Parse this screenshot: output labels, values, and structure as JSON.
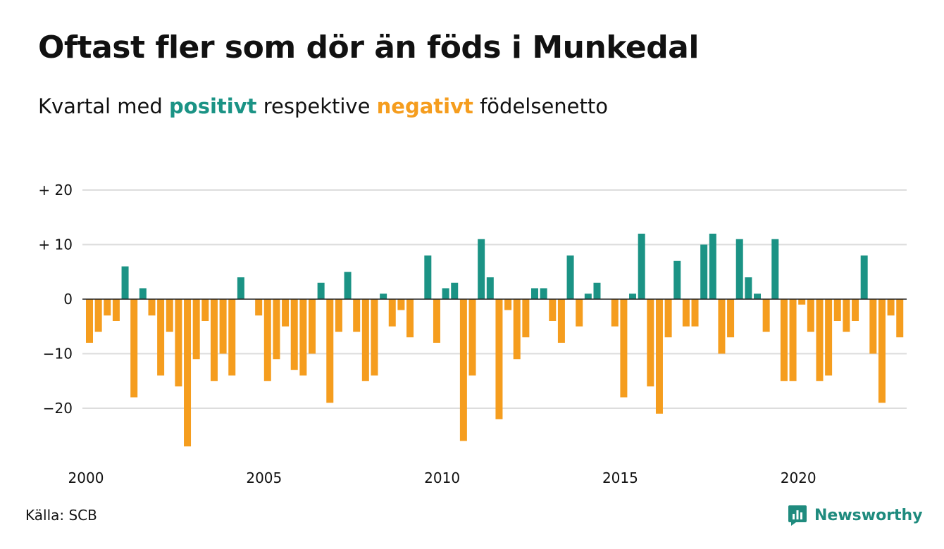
{
  "title": "Oftast fler som dör än föds i Munkedal",
  "subtitle": {
    "part1": "Kvartal med",
    "positive_word": "positivt",
    "part2": "respektive",
    "negative_word": "negativt",
    "part3": "födelsenetto"
  },
  "source": "Källa: SCB",
  "brand": "Newsworthy",
  "colors": {
    "positive": "#1b9385",
    "negative": "#f59d1e",
    "grid": "#dddddd",
    "axis": "#222222",
    "brand": "#1f8b7e"
  },
  "chart_data": {
    "type": "bar",
    "xlabel": "",
    "ylabel": "",
    "ylim": [
      -29,
      22
    ],
    "yticks": [
      {
        "value": 20,
        "label": "+ 20"
      },
      {
        "value": 10,
        "label": "+ 10"
      },
      {
        "value": 0,
        "label": "0"
      },
      {
        "value": -10,
        "label": "−10"
      },
      {
        "value": -20,
        "label": "−20"
      }
    ],
    "xticks": [
      "2000",
      "2005",
      "2010",
      "2015",
      "2020"
    ],
    "grid": true,
    "start_year": 2000,
    "values": [
      -8,
      -6,
      -3,
      -4,
      6,
      -18,
      2,
      -3,
      -14,
      -6,
      -16,
      -27,
      -11,
      -4,
      -15,
      -10,
      -14,
      4,
      0,
      -3,
      -15,
      -11,
      -5,
      -13,
      -14,
      -10,
      3,
      -19,
      -6,
      5,
      -6,
      -15,
      -14,
      1,
      -5,
      -2,
      -7,
      0,
      8,
      -8,
      2,
      3,
      -26,
      -14,
      11,
      4,
      -22,
      -2,
      -11,
      -7,
      2,
      2,
      -4,
      -8,
      8,
      -5,
      1,
      3,
      0,
      -5,
      -18,
      1,
      12,
      -16,
      -21,
      -7,
      7,
      -5,
      -5,
      10,
      12,
      -10,
      -7,
      11,
      4,
      1,
      -6,
      11,
      -15,
      -15,
      -1,
      -6,
      -15,
      -14,
      -4,
      -6,
      -4,
      8,
      -10,
      -19,
      -3,
      -7
    ]
  }
}
